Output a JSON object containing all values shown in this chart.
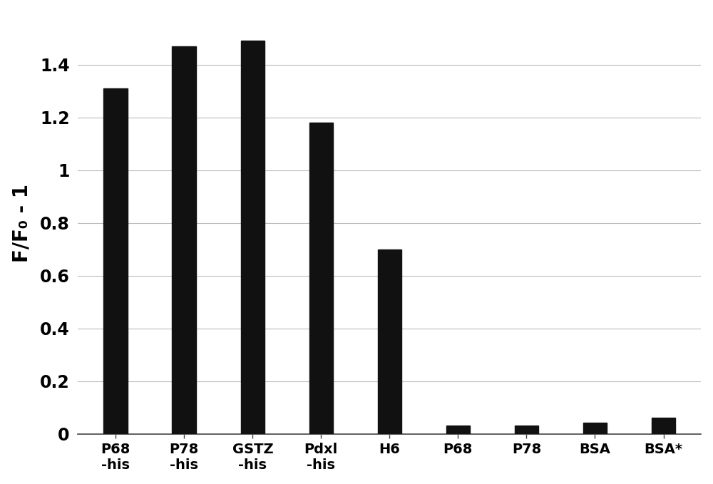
{
  "categories": [
    "P68\n-his",
    "P78\n-his",
    "GSTZ\n-his",
    "Pdxl\n-his",
    "H6",
    "P68",
    "P78",
    "BSA",
    "BSA*"
  ],
  "values": [
    1.31,
    1.47,
    1.49,
    1.18,
    0.7,
    0.033,
    0.033,
    0.043,
    0.063
  ],
  "bar_color": "#111111",
  "ylabel": "F/F₀ - 1",
  "ylim": [
    0,
    1.6
  ],
  "yticks": [
    0,
    0.2,
    0.4,
    0.6,
    0.8,
    1.0,
    1.2,
    1.4
  ],
  "ytick_labels": [
    "0",
    "0.2",
    "0.4",
    "0.6",
    "0.8",
    "1",
    "1.2",
    "1.4"
  ],
  "background_color": "#ffffff",
  "grid_color": "#bbbbbb",
  "bar_width": 0.35,
  "figwidth": 10.0,
  "figheight": 6.79,
  "dpi": 100
}
